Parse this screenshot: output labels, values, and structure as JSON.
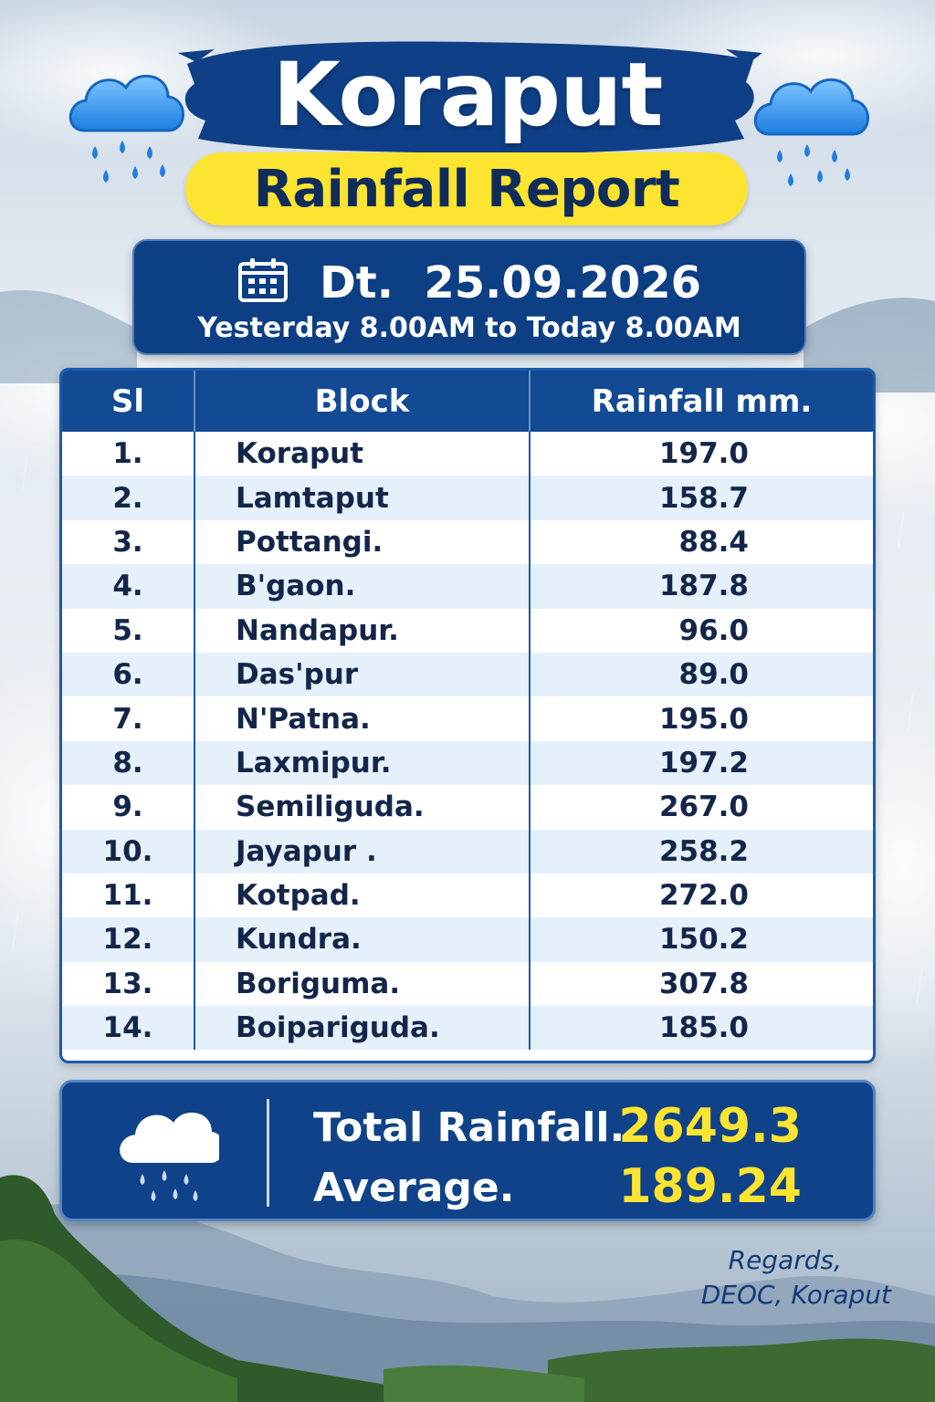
{
  "title": "Koraput",
  "subtitle": "Rainfall Report",
  "date": {
    "label": "Dt.  25.09.2026",
    "range": "Yesterday 8.00AM to Today 8.00AM"
  },
  "table": {
    "headers": {
      "sl": "Sl",
      "block": "Block",
      "rainfall": "Rainfall mm."
    },
    "rows": [
      {
        "sl": "1.",
        "block": "Koraput",
        "rainfall": "197.0"
      },
      {
        "sl": "2.",
        "block": "Lamtaput",
        "rainfall": "158.7"
      },
      {
        "sl": "3.",
        "block": "Pottangi.",
        "rainfall": "88.4"
      },
      {
        "sl": "4.",
        "block": "B'gaon.",
        "rainfall": "187.8"
      },
      {
        "sl": "5.",
        "block": "Nandapur.",
        "rainfall": "96.0"
      },
      {
        "sl": "6.",
        "block": "Das'pur",
        "rainfall": "89.0"
      },
      {
        "sl": "7.",
        "block": "N'Patna.",
        "rainfall": "195.0"
      },
      {
        "sl": "8.",
        "block": "Laxmipur.",
        "rainfall": "197.2"
      },
      {
        "sl": "9.",
        "block": "Semiliguda.",
        "rainfall": "267.0"
      },
      {
        "sl": "10.",
        "block": "Jayapur .",
        "rainfall": "258.2"
      },
      {
        "sl": "11.",
        "block": "Kotpad.",
        "rainfall": "272.0"
      },
      {
        "sl": "12.",
        "block": "Kundra.",
        "rainfall": "150.2"
      },
      {
        "sl": "13.",
        "block": "Boriguma.",
        "rainfall": "307.8"
      },
      {
        "sl": "14.",
        "block": "Boipariguda.",
        "rainfall": "185.0"
      }
    ]
  },
  "summary": {
    "total_label": "Total Rainfall.",
    "total_value": "2649.3",
    "average_label": "Average.",
    "average_value": "189.24"
  },
  "footer": {
    "regards": "Regards,",
    "signature": "DEOC, Koraput"
  },
  "colors": {
    "navy": "#0d3f84",
    "yellow": "#fde430",
    "rain_icon": "#2e8fe6"
  },
  "icons": [
    "rain-cloud-icon",
    "calendar-icon"
  ]
}
